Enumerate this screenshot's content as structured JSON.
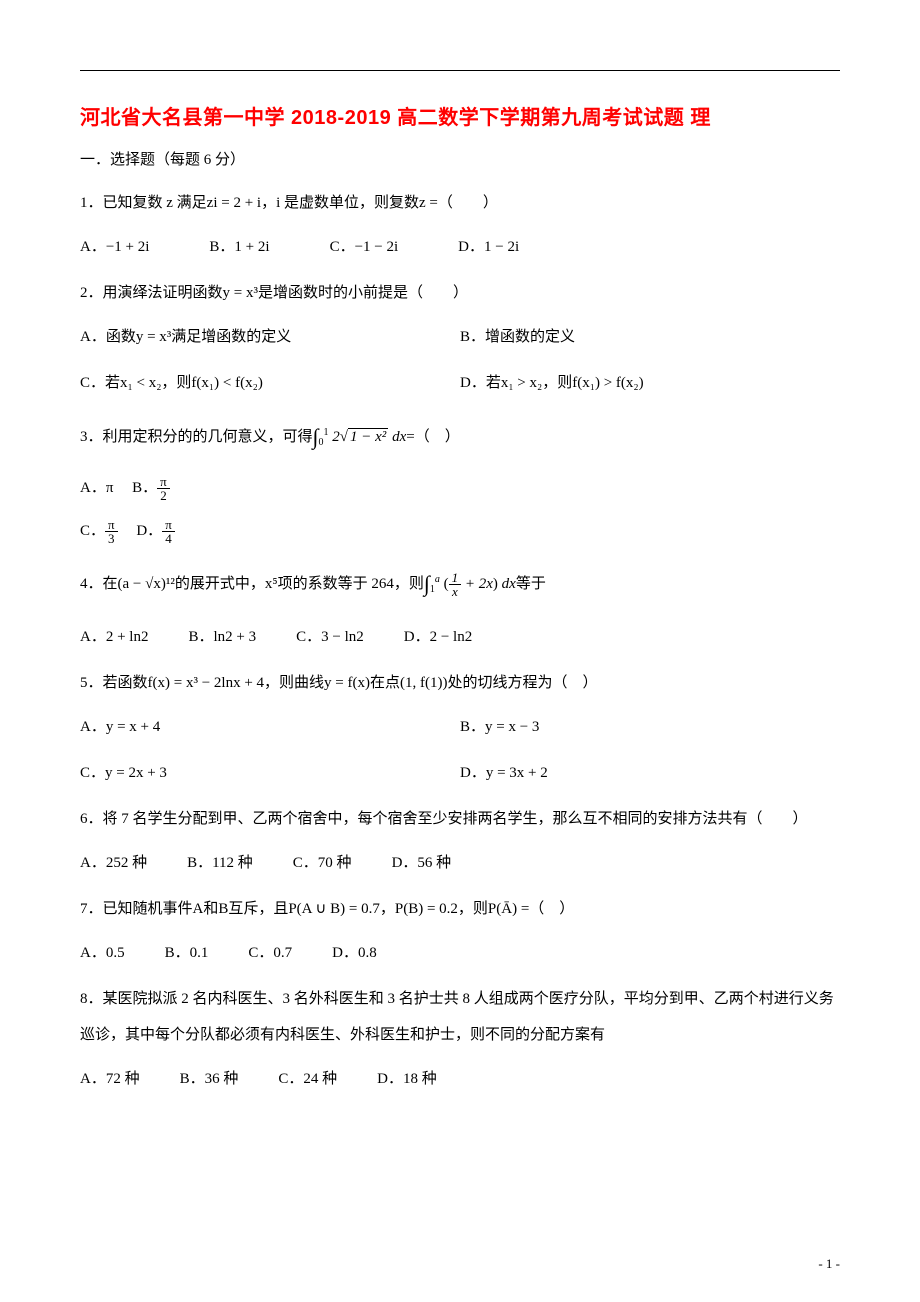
{
  "divider_count": 60,
  "title": "河北省大名县第一中学 2018-2019 高二数学下学期第九周考试试题 理",
  "section_head": "一．选择题（每题 6 分）",
  "q1": {
    "stem": "1．已知复数 z 满足zi = 2 + i，i 是虚数单位，则复数z =（　　）",
    "A": "A．−1 + 2i",
    "B": "B．1 + 2i",
    "C": "C．−1 − 2i",
    "D": "D．1 − 2i"
  },
  "q2": {
    "stem": "2．用演绎法证明函数y = x³是增函数时的小前提是（　　）",
    "A": "A．函数y = x³满足增函数的定义",
    "B": "B．增函数的定义",
    "C": "C．若x₁ < x₂，则f(x₁) < f(x₂)",
    "D": "D．若x₁ > x₂，则f(x₁) > f(x₂)"
  },
  "q3": {
    "stem_pre": "3．利用定积分的的几何意义，可得",
    "stem_post": "=（　）",
    "int_upper": "1",
    "int_lower": "0",
    "int_body_pre": "2",
    "int_body_sqrt": "1 − x²",
    "int_body_post": " dx",
    "A": "A．π",
    "B_pre": "B．",
    "B_num": "π",
    "B_den": "2",
    "C_pre": "C．",
    "C_num": "π",
    "C_den": "3",
    "D_pre": "D．",
    "D_num": "π",
    "D_den": "4"
  },
  "q4": {
    "stem_pre": "4．在(a − √x)¹²的展开式中，x⁵项的系数等于 264，则",
    "stem_post": "等于",
    "int_upper": "a",
    "int_lower": "1",
    "frac_num": "1",
    "frac_den": "x",
    "plus": " + 2x",
    "dx": " dx",
    "A": "A．2 + ln2",
    "B": "B．ln2 + 3",
    "C": "C．3 − ln2",
    "D": "D．2 − ln2"
  },
  "q5": {
    "stem": "5．若函数f(x) = x³ − 2lnx + 4，则曲线y = f(x)在点(1, f(1))处的切线方程为（　）",
    "A": "A．y = x + 4",
    "B": "B．y = x − 3",
    "C": "C．y = 2x + 3",
    "D": "D．y = 3x + 2"
  },
  "q6": {
    "stem": "6．将 7 名学生分配到甲、乙两个宿舍中，每个宿舍至少安排两名学生，那么互不相同的安排方法共有（　　）",
    "A": "A．252 种",
    "B": "B．112 种",
    "C": "C．70 种",
    "D": "D．56 种"
  },
  "q7": {
    "stem": "7．已知随机事件A和B互斥，且P(A ∪ B) = 0.7，P(B) = 0.2，则P(Ā) =（　）",
    "A": "A．0.5",
    "B": "B．0.1",
    "C": "C．0.7",
    "D": "D．0.8"
  },
  "q8": {
    "stem": "8．某医院拟派 2 名内科医生、3 名外科医生和 3 名护士共 8 人组成两个医疗分队，平均分到甲、乙两个村进行义务巡诊，其中每个分队都必须有内科医生、外科医生和护士，则不同的分配方案有",
    "A": "A．72 种",
    "B": "B．36 种",
    "C": "C．24 种",
    "D": "D．18 种"
  },
  "page_num": "- 1 -"
}
